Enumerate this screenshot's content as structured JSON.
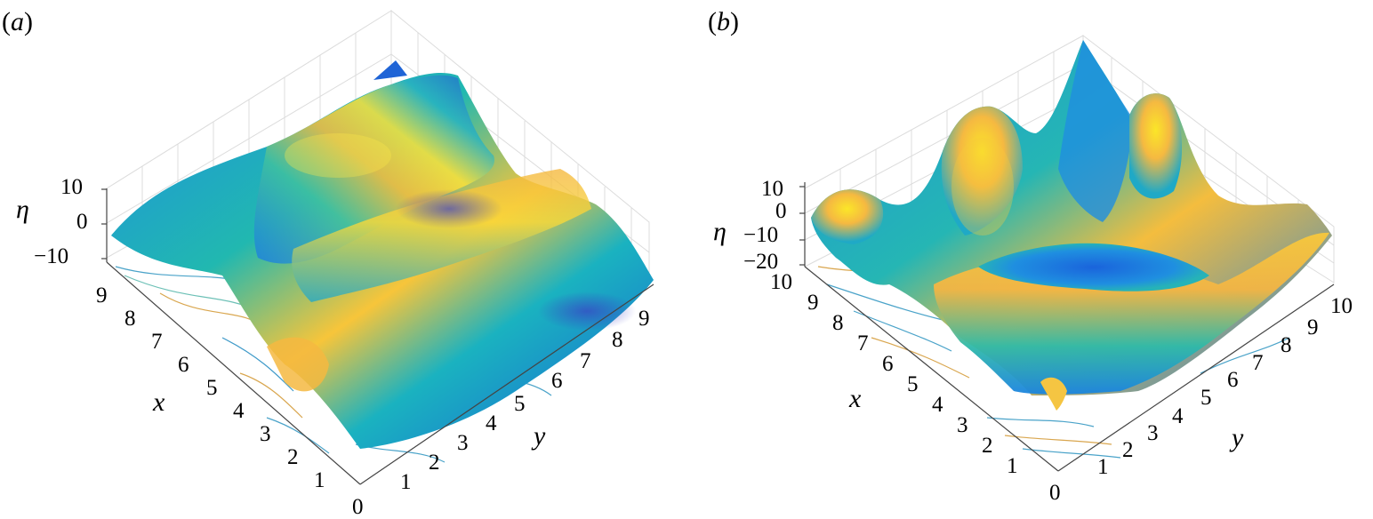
{
  "figure": {
    "colors": {
      "low": "#0b5ed8",
      "mid": "#19b3b6",
      "high": "#f5c230",
      "peak": "#fbe81c",
      "dark": "#3b4bc8"
    }
  },
  "chart_data": [
    {
      "type": "surface",
      "panel_label_open": "(",
      "panel_label_letter": "a",
      "panel_label_close": ")",
      "xlabel": "x",
      "ylabel": "y",
      "zlabel": "η",
      "xlim": [
        0,
        9.5
      ],
      "ylim": [
        0,
        9.5
      ],
      "zlim": [
        -10,
        10
      ],
      "x_ticks": [
        "0",
        "1",
        "2",
        "3",
        "4",
        "5",
        "6",
        "7",
        "8",
        "9"
      ],
      "y_ticks": [
        "1",
        "2",
        "3",
        "4",
        "5",
        "6",
        "7",
        "8",
        "9"
      ],
      "z_ticks": [
        "10",
        "0",
        "−10"
      ],
      "surface": "two long wave crests running diagonally across the domain with troughs between them",
      "contours_on_floor": true,
      "grid": true
    },
    {
      "type": "surface",
      "panel_label_open": "(",
      "panel_label_letter": "b",
      "panel_label_close": ")",
      "xlabel": "x",
      "ylabel": "y",
      "zlabel": "η",
      "xlim": [
        0,
        10
      ],
      "ylim": [
        0,
        10
      ],
      "zlim": [
        -20,
        10
      ],
      "x_ticks": [
        "0",
        "1",
        "2",
        "3",
        "4",
        "5",
        "6",
        "7",
        "8",
        "9",
        "10"
      ],
      "y_ticks": [
        "1",
        "2",
        "3",
        "4",
        "5",
        "6",
        "7",
        "8",
        "9",
        "10"
      ],
      "z_ticks": [
        "10",
        "0",
        "−10",
        "−20"
      ],
      "surface": "ring-shaped ridge with several localized peaks and a deep central depression",
      "contours_on_floor": true,
      "grid": true
    }
  ]
}
